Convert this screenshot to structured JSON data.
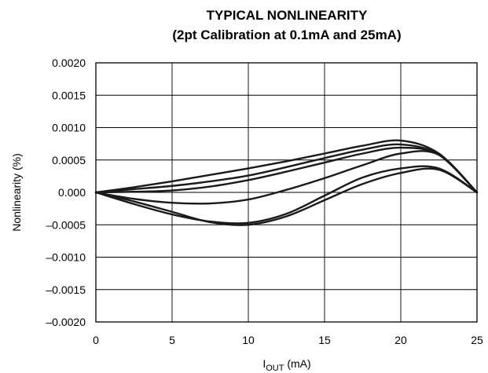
{
  "chart_data": {
    "type": "line",
    "title": "TYPICAL NONLINEARITY",
    "subtitle": "(2pt Calibration at 0.1mA and 25mA)",
    "xlabel_main": "I",
    "xlabel_sub": "OUT",
    "xlabel_unit": " (mA)",
    "ylabel": "Nonlinearity (%)",
    "xlim": [
      0,
      25
    ],
    "ylim": [
      -0.002,
      0.002
    ],
    "x_ticks": [
      0,
      5,
      10,
      15,
      20,
      25
    ],
    "x_tick_labels": [
      "0",
      "5",
      "10",
      "15",
      "20",
      "25"
    ],
    "y_ticks": [
      0.002,
      0.0015,
      0.001,
      0.0005,
      0,
      -0.0005,
      -0.001,
      -0.0015,
      -0.002
    ],
    "y_tick_labels": [
      "0.0020",
      "0.0015",
      "0.0010",
      "0.0005",
      "0.000",
      "–0.0005",
      "–0.0010",
      "–0.0015",
      "–0.0020"
    ],
    "grid": true,
    "x": [
      0,
      2.5,
      5,
      7.5,
      10,
      12.5,
      15,
      17.5,
      20,
      22.5,
      25
    ],
    "series": [
      {
        "values": [
          0,
          8e-05,
          0.00017,
          0.00027,
          0.00037,
          0.00048,
          0.0006,
          0.00072,
          0.0008,
          0.0006,
          0
        ]
      },
      {
        "values": [
          0,
          5e-05,
          0.0001,
          0.00017,
          0.00026,
          0.00039,
          0.00053,
          0.00066,
          0.00074,
          0.00058,
          0
        ]
      },
      {
        "values": [
          0,
          1e-05,
          3e-05,
          9e-05,
          0.00019,
          0.00032,
          0.00046,
          0.0006,
          0.00069,
          0.00058,
          0
        ]
      },
      {
        "values": [
          0,
          -0.0001,
          -0.00016,
          -0.00017,
          -0.00011,
          4e-05,
          0.00022,
          0.00042,
          0.0006,
          0.00058,
          0
        ]
      },
      {
        "values": [
          0,
          -0.00018,
          -0.00034,
          -0.00045,
          -0.00047,
          -0.00033,
          -5e-05,
          0.00023,
          0.00037,
          0.00037,
          0
        ]
      },
      {
        "values": [
          0,
          -0.00014,
          -0.0003,
          -0.00046,
          -0.0005,
          -0.00037,
          -0.00012,
          0.00013,
          0.0003,
          0.00035,
          0
        ]
      }
    ]
  }
}
